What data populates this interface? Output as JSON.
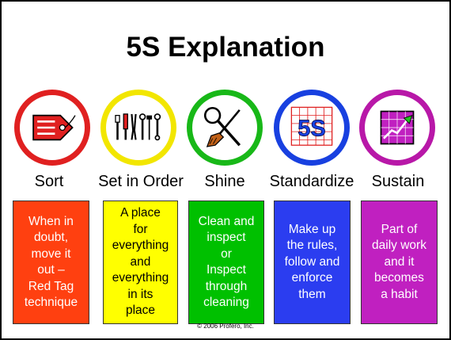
{
  "title": "5S Explanation",
  "copyright": "© 2006 Profero, Inc.",
  "steps": [
    {
      "label": "Sort",
      "text": "When in\ndoubt,\nmove it\nout –\nRed Tag\ntechnique",
      "ring_color": "#e02020",
      "box_color": "#ff4010",
      "icon": "red-tag-icon"
    },
    {
      "label": "Set in Order",
      "text": "A place\nfor\neverything\nand\neverything\nin its\nplace",
      "ring_color": "#f2e600",
      "box_color": "#ffff00",
      "icon": "tools-icon"
    },
    {
      "label": "Shine",
      "text": "Clean and\ninspect\nor\nInspect\nthrough\ncleaning",
      "ring_color": "#18b818",
      "box_color": "#00c000",
      "icon": "magnifier-broom-icon"
    },
    {
      "label": "Standardize",
      "text": "Make up\nthe rules,\nfollow and\nenforce\nthem",
      "ring_color": "#1840e0",
      "box_color": "#2b3df0",
      "icon": "5s-chart-icon",
      "icon_text": "5S"
    },
    {
      "label": "Sustain",
      "text": "Part of\ndaily work\nand it\nbecomes\na habit",
      "ring_color": "#b818a8",
      "box_color": "#c020c0",
      "icon": "growth-chart-icon"
    }
  ]
}
